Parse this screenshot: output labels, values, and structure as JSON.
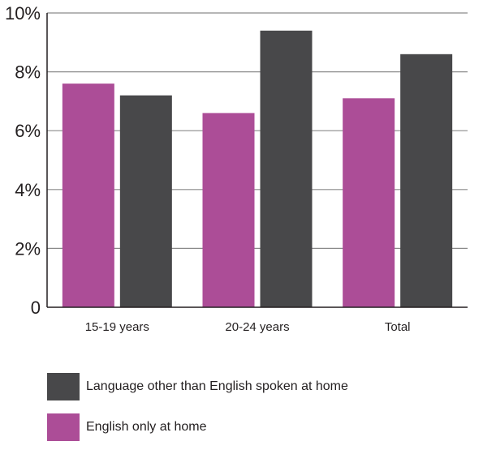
{
  "chart_data": {
    "type": "bar",
    "categories": [
      "15-19 years",
      "20-24 years",
      "Total"
    ],
    "series": [
      {
        "name": "English only at home",
        "values": [
          7.6,
          6.6,
          7.1
        ],
        "color": "#ac4d97"
      },
      {
        "name": "Language other than English spoken at home",
        "values": [
          7.2,
          9.4,
          8.6
        ],
        "color": "#48484a"
      }
    ],
    "ylim": [
      0,
      10
    ],
    "yticks": [
      0,
      2,
      4,
      6,
      8,
      10
    ],
    "ytick_labels": [
      "0",
      "2%",
      "4%",
      "6%",
      "8%",
      "10%"
    ],
    "grid": true,
    "legend_position": "bottom-left",
    "legend_order": [
      1,
      0
    ]
  }
}
